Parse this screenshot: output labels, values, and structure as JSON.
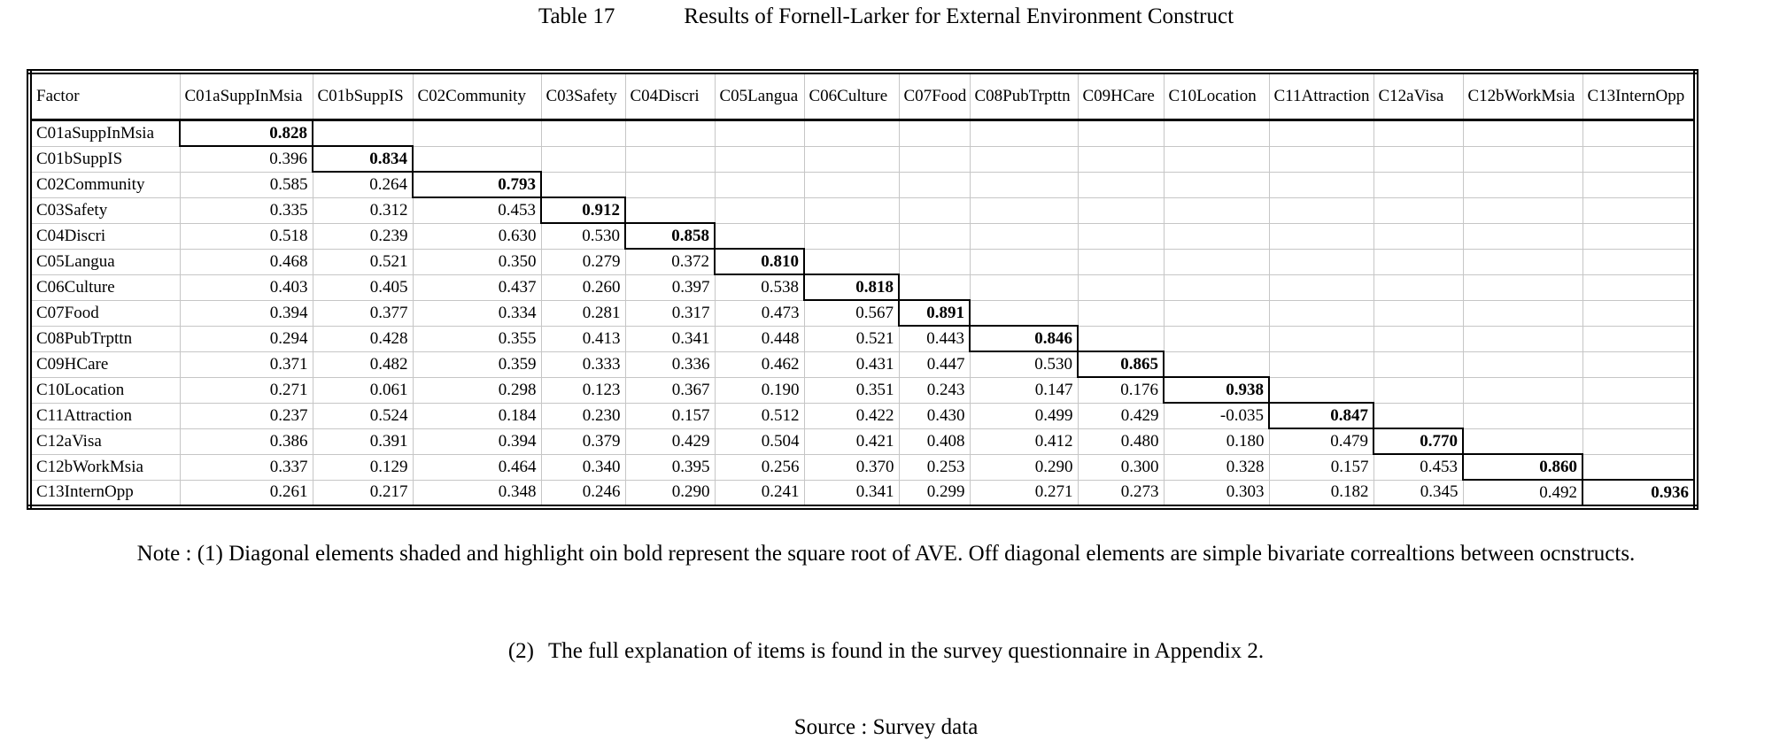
{
  "title": {
    "number": "Table 17",
    "caption": "Results of Fornell-Larker for External Environment Construct"
  },
  "table": {
    "columns": [
      "Factor",
      "C01aSuppInMsia",
      "C01bSuppIS",
      "C02Community",
      "C03Safety",
      "C04Discri",
      "C05Langua",
      "C06Culture",
      "C07Food",
      "C08PubTrpttn",
      "C09HCare",
      "C10Location",
      "C11Attraction",
      "C12aVisa",
      "C12bWorkMsia",
      "C13InternOpp"
    ],
    "rows": [
      {
        "factor": "C01aSuppInMsia",
        "values": [
          "0.828"
        ]
      },
      {
        "factor": "C01bSuppIS",
        "values": [
          "0.396",
          "0.834"
        ]
      },
      {
        "factor": "C02Community",
        "values": [
          "0.585",
          "0.264",
          "0.793"
        ]
      },
      {
        "factor": "C03Safety",
        "values": [
          "0.335",
          "0.312",
          "0.453",
          "0.912"
        ]
      },
      {
        "factor": "C04Discri",
        "values": [
          "0.518",
          "0.239",
          "0.630",
          "0.530",
          "0.858"
        ]
      },
      {
        "factor": "C05Langua",
        "values": [
          "0.468",
          "0.521",
          "0.350",
          "0.279",
          "0.372",
          "0.810"
        ]
      },
      {
        "factor": "C06Culture",
        "values": [
          "0.403",
          "0.405",
          "0.437",
          "0.260",
          "0.397",
          "0.538",
          "0.818"
        ]
      },
      {
        "factor": "C07Food",
        "values": [
          "0.394",
          "0.377",
          "0.334",
          "0.281",
          "0.317",
          "0.473",
          "0.567",
          "0.891"
        ]
      },
      {
        "factor": "C08PubTrpttn",
        "values": [
          "0.294",
          "0.428",
          "0.355",
          "0.413",
          "0.341",
          "0.448",
          "0.521",
          "0.443",
          "0.846"
        ]
      },
      {
        "factor": "C09HCare",
        "values": [
          "0.371",
          "0.482",
          "0.359",
          "0.333",
          "0.336",
          "0.462",
          "0.431",
          "0.447",
          "0.530",
          "0.865"
        ]
      },
      {
        "factor": "C10Location",
        "values": [
          "0.271",
          "0.061",
          "0.298",
          "0.123",
          "0.367",
          "0.190",
          "0.351",
          "0.243",
          "0.147",
          "0.176",
          "0.938"
        ]
      },
      {
        "factor": "C11Attraction",
        "values": [
          "0.237",
          "0.524",
          "0.184",
          "0.230",
          "0.157",
          "0.512",
          "0.422",
          "0.430",
          "0.499",
          "0.429",
          "-0.035",
          "0.847"
        ]
      },
      {
        "factor": "C12aVisa",
        "values": [
          "0.386",
          "0.391",
          "0.394",
          "0.379",
          "0.429",
          "0.504",
          "0.421",
          "0.408",
          "0.412",
          "0.480",
          "0.180",
          "0.479",
          "0.770"
        ]
      },
      {
        "factor": "C12bWorkMsia",
        "values": [
          "0.337",
          "0.129",
          "0.464",
          "0.340",
          "0.395",
          "0.256",
          "0.370",
          "0.253",
          "0.290",
          "0.300",
          "0.328",
          "0.157",
          "0.453",
          "0.860"
        ]
      },
      {
        "factor": "C13InternOpp",
        "values": [
          "0.261",
          "0.217",
          "0.348",
          "0.246",
          "0.290",
          "0.241",
          "0.341",
          "0.299",
          "0.271",
          "0.273",
          "0.303",
          "0.182",
          "0.345",
          "0.492",
          "0.936"
        ]
      }
    ]
  },
  "notes": {
    "note1": "Note : (1) Diagonal elements shaded and highlight oin bold represent the square root of AVE. Off diagonal elements are simple bivariate correaltions between ocnstructs.",
    "note2_label": "(2)",
    "note2_text": "The full explanation of items is found in the survey questionnaire in Appendix 2."
  },
  "source": "Source : Survey data"
}
